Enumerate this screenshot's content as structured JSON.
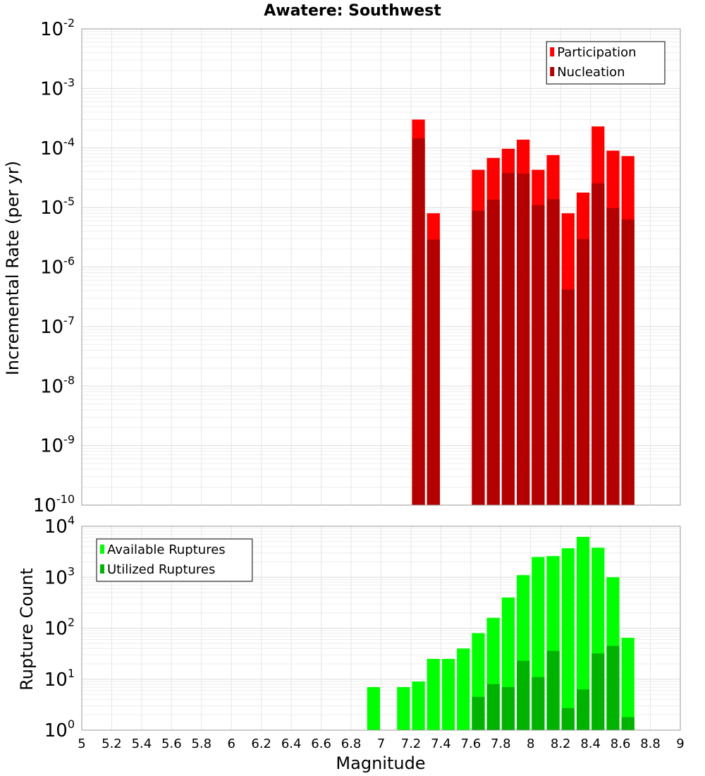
{
  "chart_data": {
    "type": "bar",
    "title": "Awatere: Southwest",
    "xlabel": "Magnitude",
    "xlim": [
      5,
      9
    ],
    "x_ticks": [
      5,
      5.2,
      5.4,
      5.6,
      5.8,
      6,
      6.2,
      6.4,
      6.6,
      6.8,
      7,
      7.2,
      7.4,
      7.6,
      7.8,
      8,
      8.2,
      8.4,
      8.6,
      8.8,
      9
    ],
    "x_tick_labels": [
      "5",
      "5.2",
      "5.4",
      "5.6",
      "5.8",
      "6",
      "6.2",
      "6.4",
      "6.6",
      "6.8",
      "7",
      "7.2",
      "7.4",
      "7.6",
      "7.8",
      "8",
      "8.2",
      "8.4",
      "8.6",
      "8.8",
      "9"
    ],
    "bin_width": 0.1,
    "panels": [
      {
        "ylabel": "Incremental Rate (per yr)",
        "yscale": "log",
        "ylim_exp": [
          -10,
          -2
        ],
        "y_tick_base": "10",
        "y_tick_exponents": [
          "-10",
          "-9",
          "-8",
          "-7",
          "-6",
          "-5",
          "-4",
          "-3",
          "-2"
        ],
        "legend_position": "top-right",
        "x": [
          7.25,
          7.35,
          7.65,
          7.75,
          7.85,
          7.95,
          8.05,
          8.15,
          8.25,
          8.35,
          8.45,
          8.55,
          8.65
        ],
        "series": [
          {
            "name": "Participation",
            "color": "#ff0000",
            "values": [
              0.0003,
              8e-06,
              4.3e-05,
              6.8e-05,
              9.7e-05,
              0.000138,
              4.3e-05,
              7.6e-05,
              8e-06,
              1.78e-05,
              0.00023,
              9e-05,
              7.3e-05
            ]
          },
          {
            "name": "Nucleation",
            "color": "#b30000",
            "values": [
              0.000145,
              2.9e-06,
              8.8e-06,
              1.36e-05,
              3.8e-05,
              3.7e-05,
              1.1e-05,
              1.38e-05,
              4.2e-07,
              2.95e-06,
              2.55e-05,
              9.8e-06,
              6.3e-06
            ]
          }
        ]
      },
      {
        "ylabel": "Rupture Count",
        "yscale": "log",
        "ylim_exp": [
          0,
          4
        ],
        "y_tick_base": "10",
        "y_tick_exponents": [
          "0",
          "1",
          "2",
          "3",
          "4"
        ],
        "legend_position": "top-left",
        "x": [
          6.95,
          7.15,
          7.25,
          7.35,
          7.45,
          7.55,
          7.65,
          7.75,
          7.85,
          7.95,
          8.05,
          8.15,
          8.25,
          8.35,
          8.45,
          8.55,
          8.65
        ],
        "series": [
          {
            "name": "Available Ruptures",
            "color": "#00ff00",
            "values": [
              7,
              7,
              9,
              25,
              25,
              40,
              80,
              160,
              400,
              1100,
              2500,
              2600,
              3700,
              6200,
              3800,
              1000,
              65
            ]
          },
          {
            "name": "Utilized Ruptures",
            "color": "#00b300",
            "values": [
              0,
              0,
              1,
              1,
              0,
              0,
              4.5,
              8,
              7,
              23,
              11,
              36,
              2.7,
              6.3,
              32,
              45,
              1.8
            ]
          }
        ]
      }
    ]
  }
}
